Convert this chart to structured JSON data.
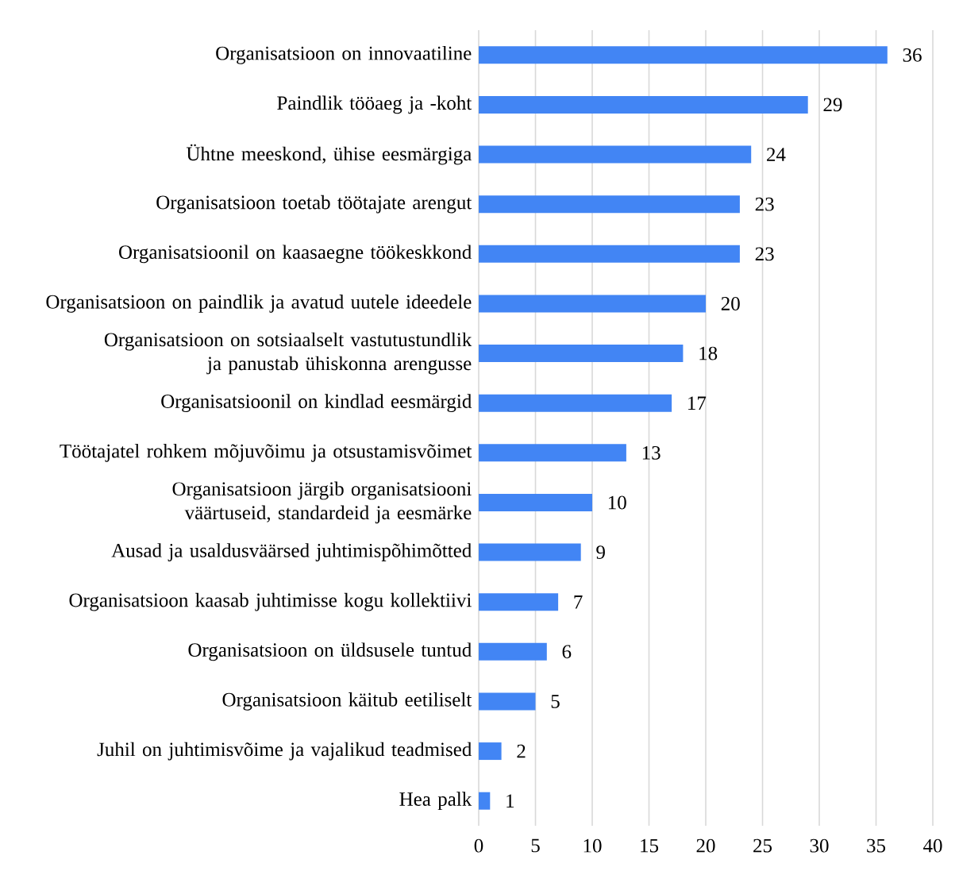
{
  "chart_data": {
    "type": "bar",
    "orientation": "horizontal",
    "categories": [
      "Organisatsioon on innovaatiline",
      "Paindlik tööaeg ja -koht",
      "Ühtne meeskond, ühise eesmärgiga",
      "Organisatsioon toetab töötajate arengut",
      "Organisatsioonil on kaasaegne töökeskkond",
      "Organisatsioon on paindlik ja avatud uutele ideedele",
      "Organisatsioon on sotsiaalselt vastutustundlik ja panustab ühiskonna arengusse",
      "Organisatsioonil on kindlad eesmärgid",
      "Töötajatel rohkem mõjuvõimu ja otsustamisvõimet",
      "Organisatsioon järgib organisatsiooni väärtuseid, standardeid ja eesmärke",
      "Ausad ja usaldusväärsed juhtimispõhimõtted",
      "Organisatsioon kaasab juhtimisse kogu kollektiivi",
      "Organisatsioon on üldsusele tuntud",
      "Organisatsioon käitub eetiliselt",
      "Juhil on juhtimisvõime ja vajalikud teadmised",
      "Hea palk"
    ],
    "values": [
      36,
      29,
      24,
      23,
      23,
      20,
      18,
      17,
      13,
      10,
      9,
      7,
      6,
      5,
      2,
      1
    ],
    "color": "#4285f4",
    "xlim": [
      0,
      40
    ],
    "xticks": [
      0,
      5,
      10,
      15,
      20,
      25,
      30,
      35,
      40
    ],
    "grid": "x",
    "data_labels": true
  }
}
